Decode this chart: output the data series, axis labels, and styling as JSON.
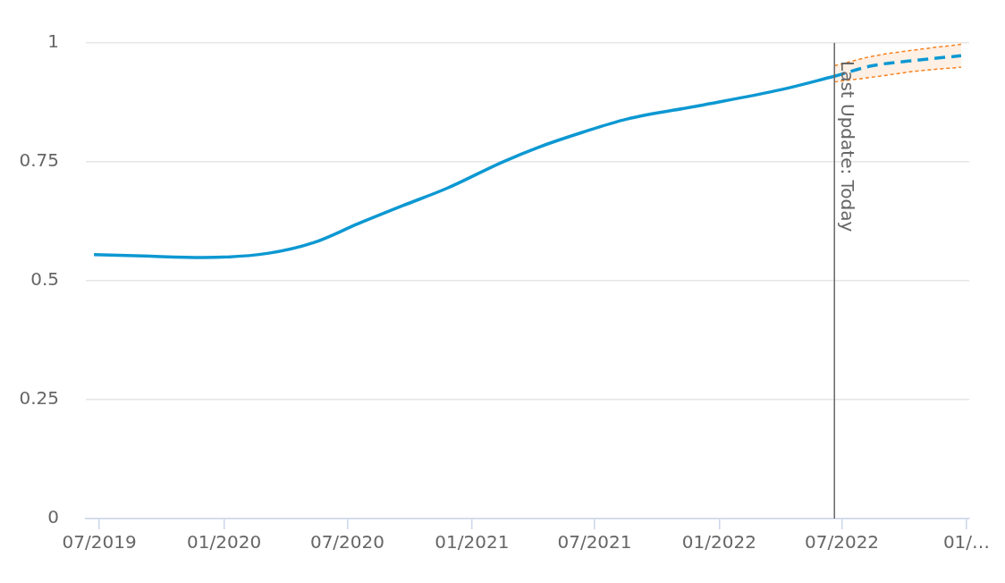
{
  "chart_data": {
    "type": "line",
    "x": [
      "2019-06-23",
      "2019-09-04",
      "2019-12-01",
      "2020-03-07",
      "2020-05-12",
      "2020-07-17",
      "2020-09-21",
      "2020-11-26",
      "2021-02-14",
      "2021-04-08",
      "2021-06-13",
      "2021-08-18",
      "2021-12-02",
      "2022-04-03",
      "2022-06-20"
    ],
    "series": [
      {
        "color": "#0d98d2",
        "line_style": "solid",
        "values": [
          0.555,
          0.552,
          0.549,
          0.558,
          0.58,
          0.62,
          0.658,
          0.695,
          0.749,
          0.78,
          0.812,
          0.84,
          0.868,
          0.902,
          0.93
        ]
      },
      {
        "color": "#0d98d2",
        "line_style": "dashed",
        "x": [
          "2022-06-20",
          "2022-08-15",
          "2022-10-15",
          "2022-12-24"
        ],
        "values": [
          0.93,
          0.952,
          0.963,
          0.973
        ],
        "lower": [
          0.918,
          0.928,
          0.94,
          0.949
        ],
        "upper": [
          0.952,
          0.972,
          0.985,
          0.997
        ]
      }
    ],
    "xlim": [
      "2019-06-11",
      "2023-01-05"
    ],
    "xticks": [
      {
        "value": "2019-07",
        "label": "07/2019"
      },
      {
        "value": "2020-01",
        "label": "01/2020"
      },
      {
        "value": "2020-07",
        "label": "07/2020"
      },
      {
        "value": "2021-01",
        "label": "01/2021"
      },
      {
        "value": "2021-07",
        "label": "07/2021"
      },
      {
        "value": "2022-01",
        "label": "01/2022"
      },
      {
        "value": "2022-07",
        "label": "07/2022"
      },
      {
        "value": "2023-01",
        "label": "01/…"
      }
    ],
    "ylim": [
      0,
      1
    ],
    "yticks": [
      0,
      0.25,
      0.5,
      0.75,
      1
    ],
    "grid": "y",
    "legend": false,
    "ref_lines": [
      {
        "axis": "x",
        "value": "2022-06-20",
        "label": "Last Update: Today",
        "color": "#666666"
      }
    ]
  }
}
